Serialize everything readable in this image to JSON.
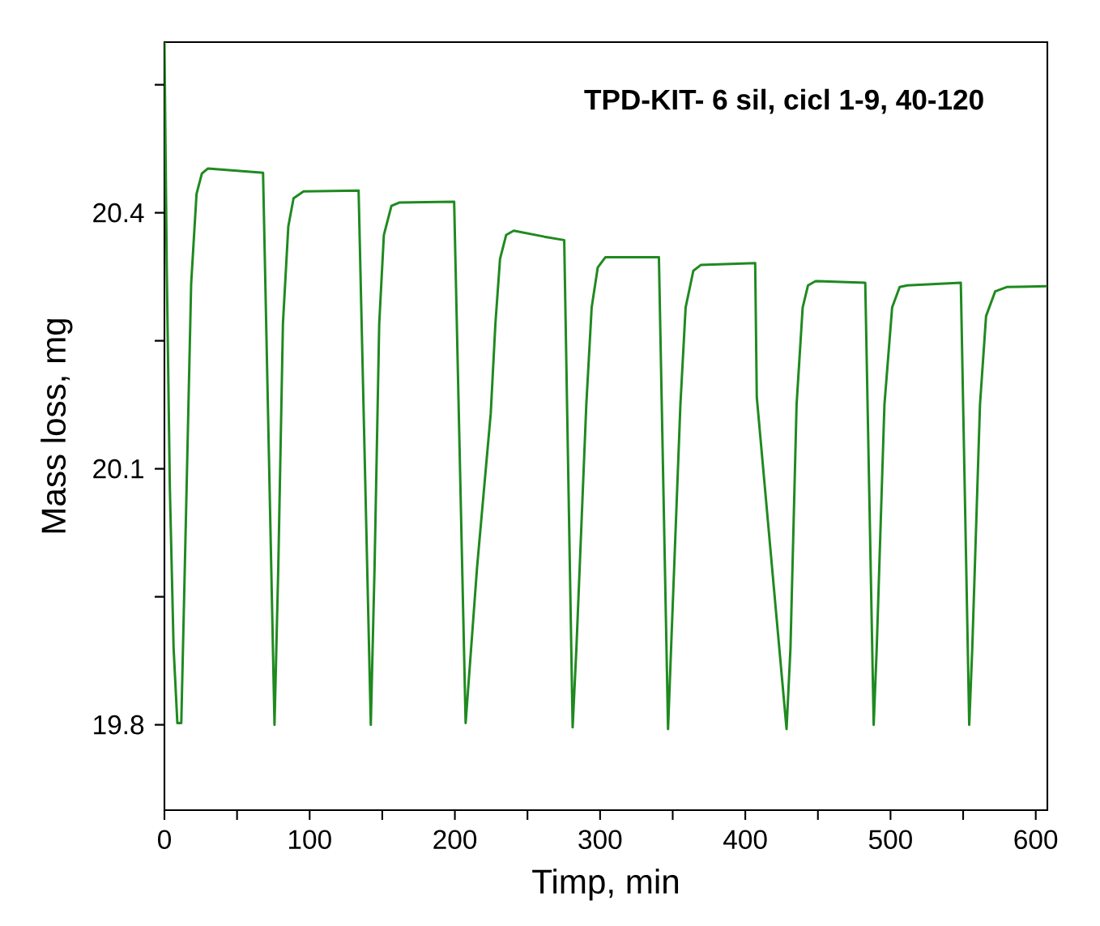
{
  "chart_data": {
    "type": "line",
    "title": "TPD-KIT- 6 sil, cicl 1-9, 40-120",
    "xlabel": "Timp, min",
    "ylabel": "Mass loss, mg",
    "xlim": [
      0,
      608
    ],
    "ylim": [
      19.7,
      20.6
    ],
    "xticks": [
      0,
      {
        "value": 50,
        "label": null
      },
      100,
      {
        "value": 150,
        "label": null
      },
      200,
      {
        "value": 250,
        "label": null
      },
      300,
      {
        "value": 350,
        "label": null
      },
      400,
      {
        "value": 450,
        "label": null
      },
      500,
      {
        "value": 550,
        "label": null
      },
      600
    ],
    "yticks": [
      19.8,
      {
        "value": 19.95,
        "label": null
      },
      20.1,
      {
        "value": 20.25,
        "label": null
      },
      20.4,
      {
        "value": 20.55,
        "label": null
      }
    ],
    "grid": false,
    "legend": false,
    "marker": "none",
    "line_style": "solid",
    "series": [
      {
        "color": "#1f8a1f",
        "x": [
          0,
          1.6,
          3.7,
          6.3,
          8.9,
          11.6,
          15.3,
          18.4,
          22.1,
          25.8,
          30,
          67.9,
          75.8,
          78.4,
          81.6,
          85.3,
          88.9,
          95.8,
          133.7,
          142.1,
          144.7,
          147.9,
          151.1,
          156.3,
          161.6,
          199.5,
          207.4,
          215.3,
          224.7,
          227.9,
          231.1,
          235.3,
          240.5,
          261.6,
          275.3,
          281.1,
          283.7,
          290.5,
          294.2,
          298.4,
          303.7,
          340.5,
          346.8,
          348.9,
          355.3,
          358.9,
          364.2,
          369.5,
          406.8,
          407.9,
          428.4,
          431.1,
          435.3,
          439.5,
          443.2,
          448.4,
          482.6,
          488.4,
          490.5,
          495.8,
          501.1,
          506.3,
          511.6,
          548.4,
          554.2,
          556.3,
          561.6,
          565.8,
          572.1,
          580,
          607.9
        ],
        "values": [
          20.6,
          20.336,
          20.08,
          19.89,
          19.802,
          19.802,
          20.08,
          20.317,
          20.422,
          20.446,
          20.452,
          20.447,
          19.8,
          19.985,
          20.27,
          20.384,
          20.417,
          20.425,
          20.426,
          19.8,
          19.985,
          20.27,
          20.374,
          20.408,
          20.412,
          20.413,
          19.802,
          19.985,
          20.165,
          20.27,
          20.346,
          20.374,
          20.379,
          20.372,
          20.368,
          19.797,
          19.89,
          20.175,
          20.289,
          20.336,
          20.348,
          20.348,
          19.795,
          19.89,
          20.175,
          20.289,
          20.332,
          20.339,
          20.341,
          20.184,
          19.795,
          19.89,
          20.175,
          20.289,
          20.315,
          20.32,
          20.318,
          19.8,
          19.89,
          20.175,
          20.289,
          20.313,
          20.315,
          20.318,
          19.8,
          19.89,
          20.175,
          20.279,
          20.308,
          20.313,
          20.314
        ]
      }
    ]
  }
}
